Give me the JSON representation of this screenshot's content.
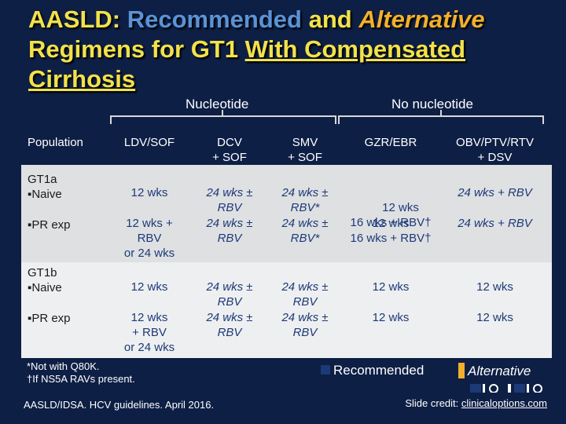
{
  "title": {
    "part1": "AASLD:",
    "part2": "Recommended",
    "part3": "and",
    "part4": "Alternative",
    "line2_a": "Regimens for GT1",
    "line2_b": "With Compensated",
    "line3": "Cirrhosis"
  },
  "groups": {
    "left": "Nucleotide",
    "right": "No nucleotide"
  },
  "table": {
    "headers": [
      "Population",
      "LDV/SOF",
      "DCV\n+ SOF",
      "SMV\n+ SOF",
      "GZR/EBR",
      "OBV/PTV/RTV\n+ DSV"
    ],
    "gt1a_label": "GT1a",
    "gt1b_label": "GT1b",
    "naive_label": "▪Naive",
    "prexp_label": "▪PR exp",
    "gt1a": {
      "naive": [
        "12 wks",
        "24 wks ±\nRBV",
        "24 wks ±\nRBV*",
        "12 wks\n16 wks + RBV†",
        "24 wks + RBV"
      ],
      "prexp": [
        "12 wks +\nRBV\nor 24 wks",
        "24 wks ±\nRBV",
        "24 wks ±\nRBV*",
        "12 wks\n16 wks + RBV†",
        "24 wks + RBV"
      ]
    },
    "gt1b": {
      "naive": [
        "12 wks",
        "24 wks ±\nRBV",
        "24 wks ±\nRBV",
        "12 wks",
        "12 wks"
      ],
      "prexp": [
        "12 wks\n+ RBV\nor 24 wks",
        "24 wks ±\nRBV",
        "24 wks ±\nRBV",
        "12 wks",
        "12 wks"
      ]
    }
  },
  "footnotes": {
    "f1": "*Not with Q80K.",
    "f2": "†If NS5A RAVs present."
  },
  "legend": {
    "recommended": "Recommended",
    "alternative": "Alternative"
  },
  "source": "AASLD/IDSA. HCV guidelines. April 2016.",
  "credit": {
    "prefix": "Slide credit:",
    "link": "clinicaloptions.com"
  },
  "colors": {
    "background": "#0e1f45",
    "title_yellow": "#f2e24a",
    "title_blue": "#5a93d6",
    "alternative": "#f2b02a",
    "recommended": "#1c3a78"
  }
}
